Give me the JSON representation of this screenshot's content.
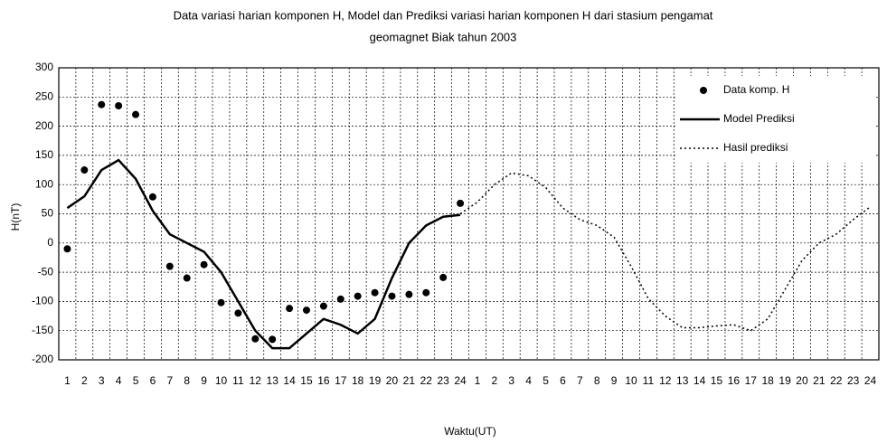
{
  "chart_data": {
    "type": "line",
    "title": [
      "Data variasi harian komponen H, Model dan Prediksi variasi harian komponen H dari stasium pengamat",
      "geomagnet Biak tahun 2003"
    ],
    "x_label": "Waktu(UT)",
    "y_label": "H(nT)",
    "categories": [
      "1",
      "2",
      "3",
      "4",
      "5",
      "6",
      "7",
      "8",
      "9",
      "10",
      "11",
      "12",
      "13",
      "14",
      "15",
      "16",
      "17",
      "18",
      "19",
      "20",
      "21",
      "22",
      "23",
      "24",
      "1",
      "2",
      "3",
      "4",
      "5",
      "6",
      "7",
      "8",
      "9",
      "10",
      "11",
      "12",
      "13",
      "14",
      "15",
      "16",
      "17",
      "18",
      "19",
      "20",
      "21",
      "22",
      "23",
      "24"
    ],
    "ylim": [
      -200,
      300
    ],
    "yticks": [
      300,
      250,
      200,
      150,
      100,
      50,
      0,
      -50,
      -100,
      -150,
      -200
    ],
    "grid": true,
    "legend": "upper right",
    "series": [
      {
        "name": "Data komp. H",
        "color": "#000000",
        "style": "dots",
        "values": [
          -10,
          125,
          237,
          235,
          220,
          79,
          -40,
          -60,
          -37,
          -102,
          -120,
          -164,
          -165,
          -112,
          -115,
          -108,
          -96,
          -91,
          -85,
          -91,
          -88,
          -85,
          -59,
          68,
          null,
          null,
          null,
          null,
          null,
          null,
          null,
          null,
          null,
          null,
          null,
          null,
          null,
          null,
          null,
          null,
          null,
          null,
          null,
          null,
          null,
          null,
          null,
          null
        ]
      },
      {
        "name": "Model Prediksi",
        "color": "#000000",
        "style": "solid",
        "values": [
          60,
          80,
          125,
          142,
          110,
          55,
          15,
          0,
          -15,
          -50,
          -100,
          -150,
          -180,
          -180,
          -155,
          -130,
          -140,
          -155,
          -130,
          -60,
          0,
          30,
          45,
          48,
          null,
          null,
          null,
          null,
          null,
          null,
          null,
          null,
          null,
          null,
          null,
          null,
          null,
          null,
          null,
          null,
          null,
          null,
          null,
          null,
          null,
          null,
          null,
          null
        ]
      },
      {
        "name": "Hasil prediksi",
        "color": "#000000",
        "style": "dotted",
        "values": [
          null,
          null,
          null,
          null,
          null,
          null,
          null,
          null,
          null,
          null,
          null,
          null,
          null,
          null,
          null,
          null,
          null,
          null,
          null,
          null,
          null,
          null,
          null,
          50,
          70,
          100,
          120,
          115,
          95,
          60,
          40,
          30,
          10,
          -40,
          -95,
          -125,
          -145,
          -145,
          -142,
          -140,
          -150,
          -130,
          -80,
          -30,
          0,
          15,
          40,
          62
        ]
      }
    ]
  }
}
